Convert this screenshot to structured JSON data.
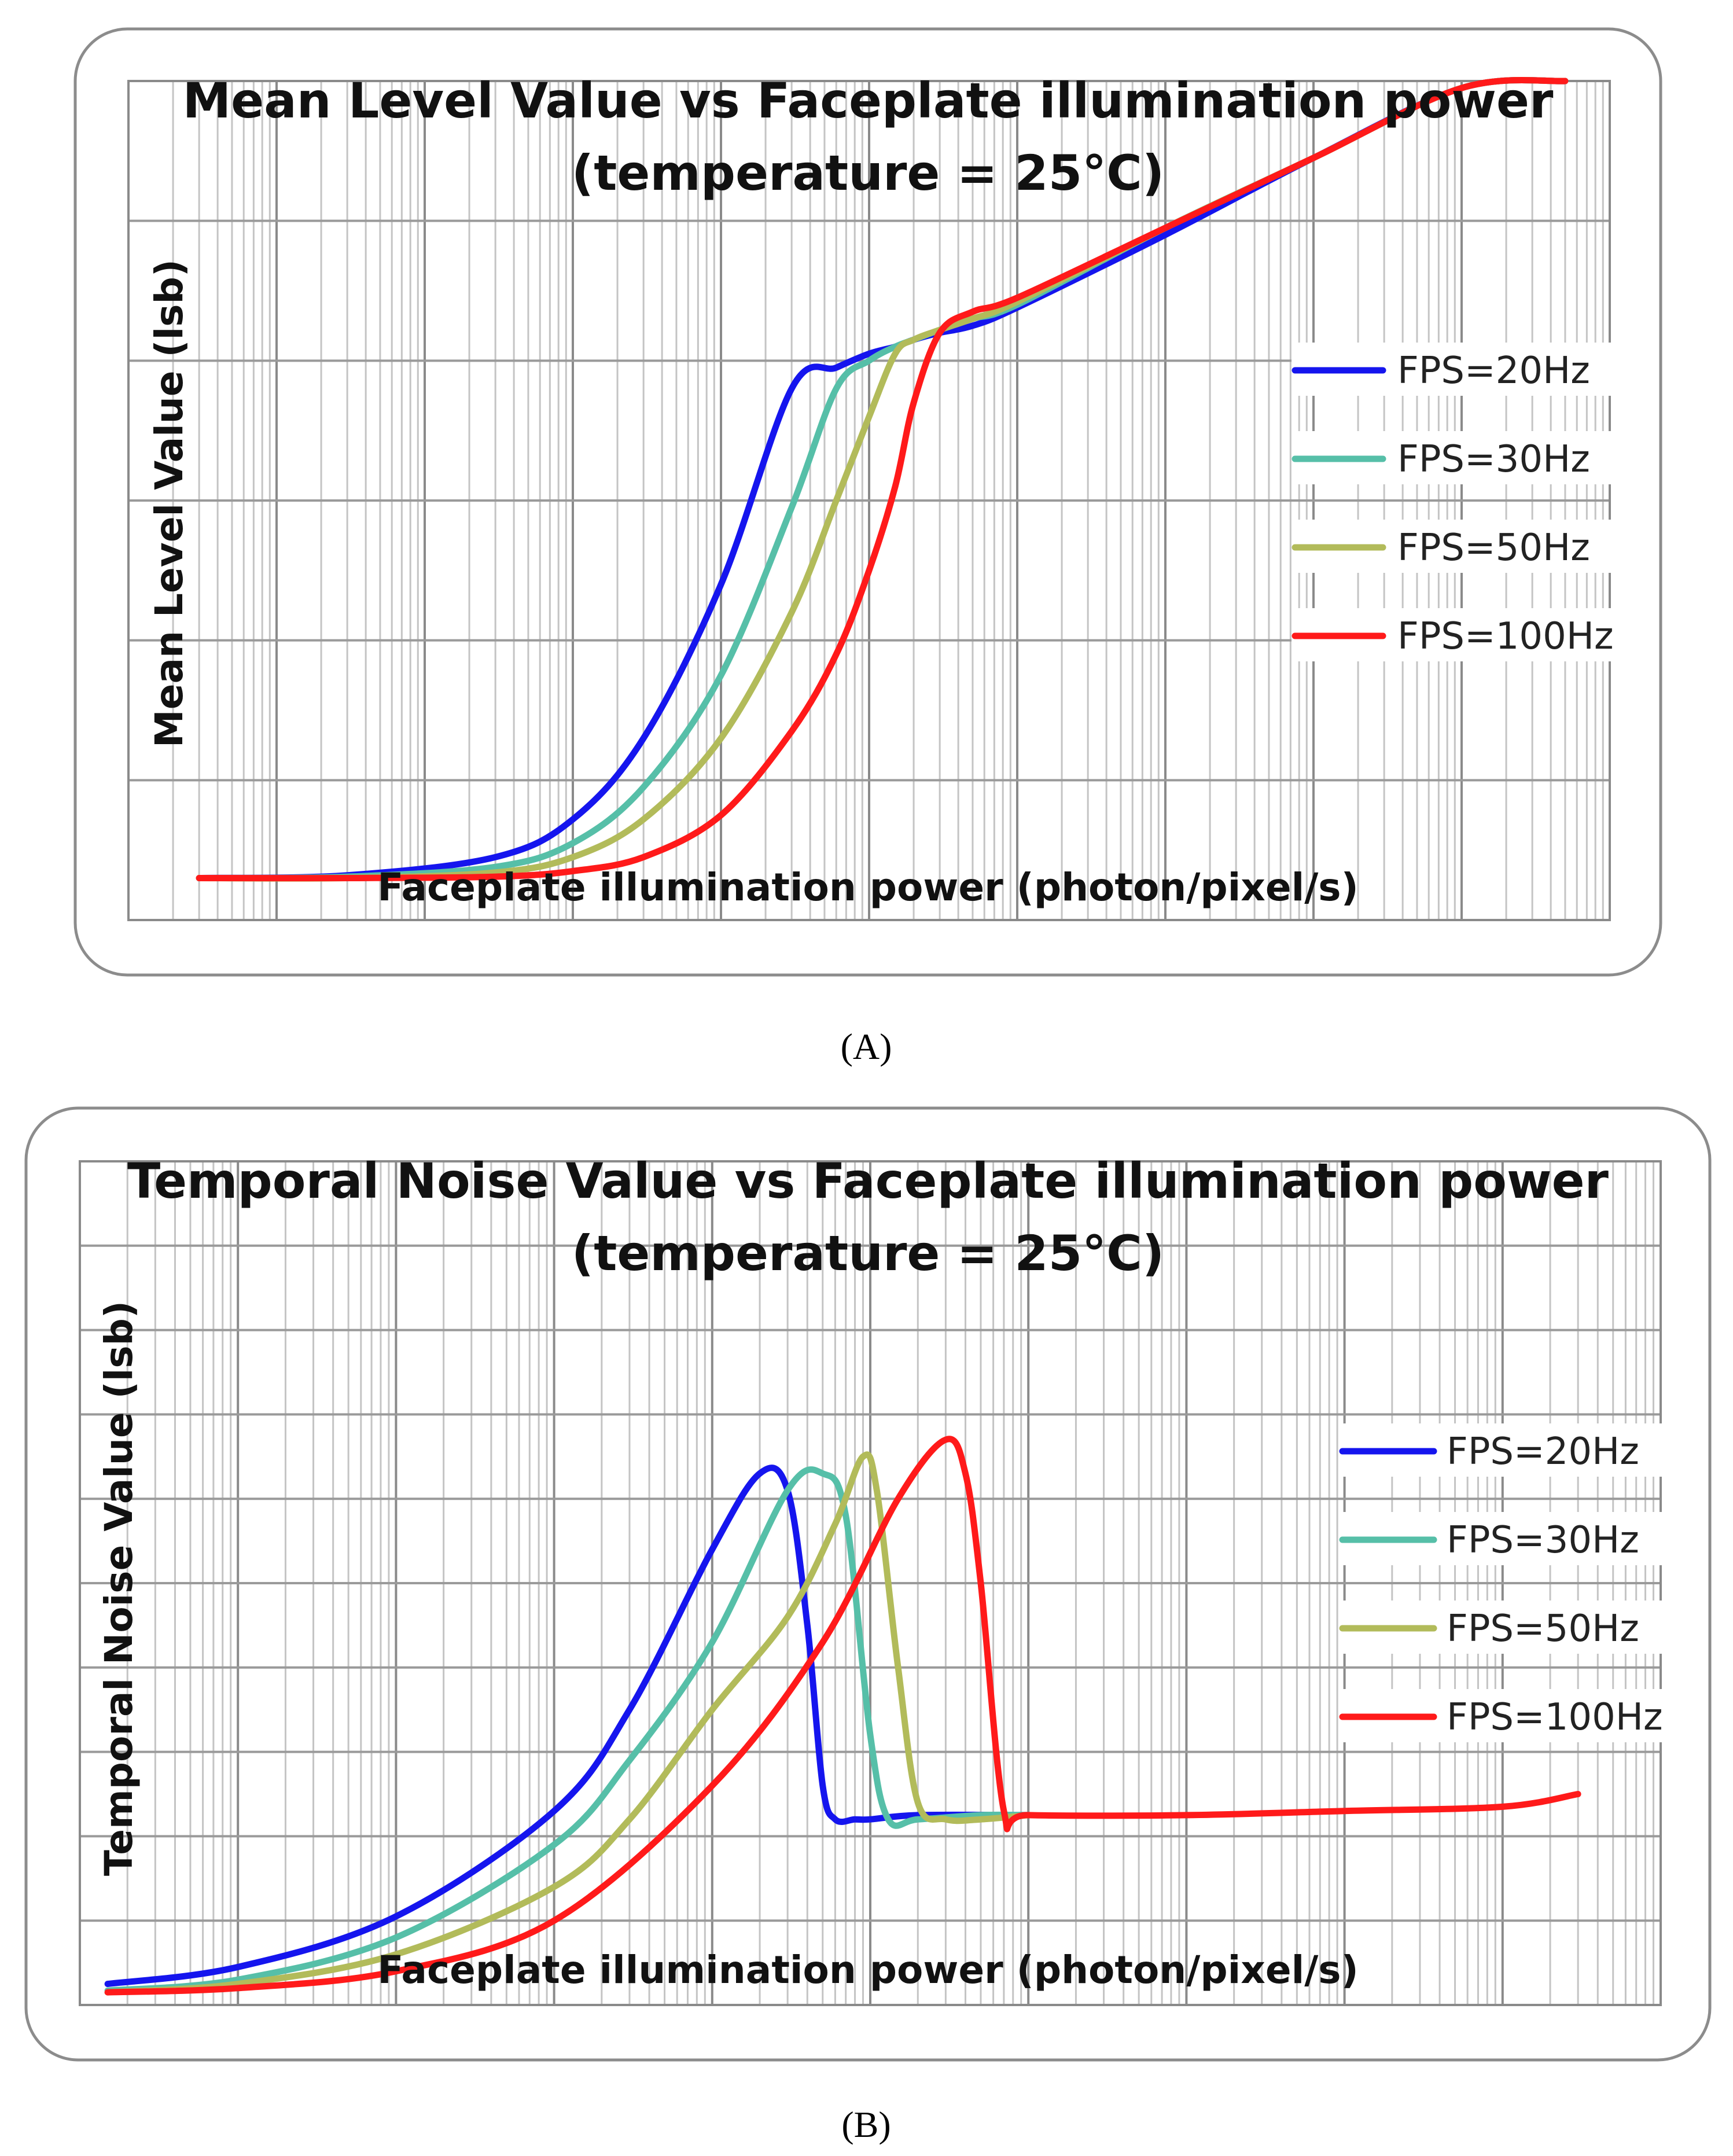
{
  "chart_data": [
    {
      "type": "line",
      "panel_label": "(A)",
      "title": [
        "Mean Level Value vs Faceplate illumination power",
        "(temperature = 25°C)"
      ],
      "xlabel": "Faceplate illumination power (photon/pixel/s)",
      "ylabel": "Mean Level Value (lsb)",
      "xscale": "log",
      "xlim": [
        1,
        10000000000
      ],
      "ylim": [
        0,
        6
      ],
      "grid": true,
      "legend_position": "right",
      "series": [
        {
          "name": "FPS=20Hz",
          "color": "#1515ee",
          "x": [
            3,
            30,
            300,
            1000,
            3000,
            10000,
            30000,
            60000,
            100000,
            150000,
            200000,
            300000,
            500000,
            1000000,
            10000000,
            100000000,
            1000000000,
            5000000000
          ],
          "y": [
            0.3,
            0.32,
            0.45,
            0.72,
            1.3,
            2.4,
            3.8,
            3.95,
            4.05,
            4.1,
            4.15,
            4.2,
            4.25,
            4.38,
            4.9,
            5.45,
            5.95,
            6.0
          ]
        },
        {
          "name": "FPS=30Hz",
          "color": "#56bfa8",
          "x": [
            3,
            30,
            300,
            1000,
            3000,
            10000,
            30000,
            60000,
            100000,
            150000,
            200000,
            300000,
            500000,
            1000000,
            10000000,
            100000000,
            1000000000,
            5000000000
          ],
          "y": [
            0.3,
            0.31,
            0.38,
            0.55,
            0.95,
            1.75,
            2.95,
            3.8,
            4.0,
            4.1,
            4.15,
            4.22,
            4.3,
            4.4,
            4.95,
            5.45,
            5.95,
            6.0
          ]
        },
        {
          "name": "FPS=50Hz",
          "color": "#b2bb5a",
          "x": [
            3,
            30,
            300,
            1000,
            3000,
            10000,
            30000,
            60000,
            100000,
            150000,
            200000,
            300000,
            500000,
            1000000,
            10000000,
            100000000,
            1000000000,
            5000000000
          ],
          "y": [
            0.3,
            0.3,
            0.34,
            0.45,
            0.72,
            1.3,
            2.2,
            3.0,
            3.6,
            4.05,
            4.15,
            4.22,
            4.3,
            4.42,
            4.95,
            5.45,
            5.95,
            6.0
          ]
        },
        {
          "name": "FPS=100Hz",
          "color": "#ff1a1a",
          "x": [
            3,
            30,
            300,
            1000,
            3000,
            10000,
            30000,
            60000,
            100000,
            150000,
            200000,
            300000,
            500000,
            1000000,
            10000000,
            100000000,
            1000000000,
            5000000000
          ],
          "y": [
            0.3,
            0.3,
            0.31,
            0.35,
            0.45,
            0.75,
            1.35,
            1.9,
            2.5,
            3.1,
            3.7,
            4.2,
            4.35,
            4.45,
            4.95,
            5.45,
            5.95,
            6.0
          ]
        }
      ]
    },
    {
      "type": "line",
      "panel_label": "(B)",
      "title": [
        "Temporal Noise Value vs Faceplate illumination power",
        "(temperature = 25°C)"
      ],
      "xlabel": "Faceplate illumination power (photon/pixel/s)",
      "ylabel": "Temporal Noise Value (lsb)",
      "xscale": "log",
      "xlim": [
        1,
        10000000000
      ],
      "ylim": [
        0,
        10
      ],
      "grid": true,
      "legend_position": "right",
      "series": [
        {
          "name": "FPS=20Hz",
          "color": "#1515ee",
          "x": [
            1.5,
            10,
            100,
            1000,
            3000,
            10000,
            20000,
            30000,
            40000,
            50000,
            60000,
            80000,
            100000,
            200000,
            1000000
          ],
          "y": [
            0.25,
            0.45,
            1.05,
            2.3,
            3.5,
            5.4,
            6.3,
            6.1,
            4.5,
            2.6,
            2.2,
            2.2,
            2.2,
            2.25,
            2.25
          ]
        },
        {
          "name": "FPS=30Hz",
          "color": "#56bfa8",
          "x": [
            1.5,
            10,
            100,
            1000,
            3000,
            10000,
            30000,
            50000,
            70000,
            100000,
            130000,
            200000,
            500000,
            1000000
          ],
          "y": [
            0.17,
            0.3,
            0.8,
            1.9,
            2.9,
            4.3,
            6.1,
            6.3,
            5.8,
            3.2,
            2.2,
            2.2,
            2.25,
            2.25
          ]
        },
        {
          "name": "FPS=50Hz",
          "color": "#b2bb5a",
          "x": [
            1.5,
            10,
            100,
            1000,
            3000,
            10000,
            30000,
            60000,
            90000,
            110000,
            150000,
            200000,
            300000,
            500000,
            1000000
          ],
          "y": [
            0.15,
            0.25,
            0.6,
            1.4,
            2.2,
            3.5,
            4.6,
            5.7,
            6.5,
            6.1,
            4.0,
            2.4,
            2.2,
            2.2,
            2.25
          ]
        },
        {
          "name": "FPS=100Hz",
          "color": "#ff1a1a",
          "x": [
            1.5,
            10,
            100,
            1000,
            10000,
            50000,
            150000,
            300000,
            400000,
            500000,
            700000,
            1000000,
            10000000,
            100000000,
            1000000000,
            3000000000
          ],
          "y": [
            0.15,
            0.2,
            0.4,
            1.0,
            2.6,
            4.3,
            6.0,
            6.7,
            6.3,
            5.0,
            2.3,
            2.25,
            2.25,
            2.3,
            2.35,
            2.5
          ]
        }
      ]
    }
  ]
}
